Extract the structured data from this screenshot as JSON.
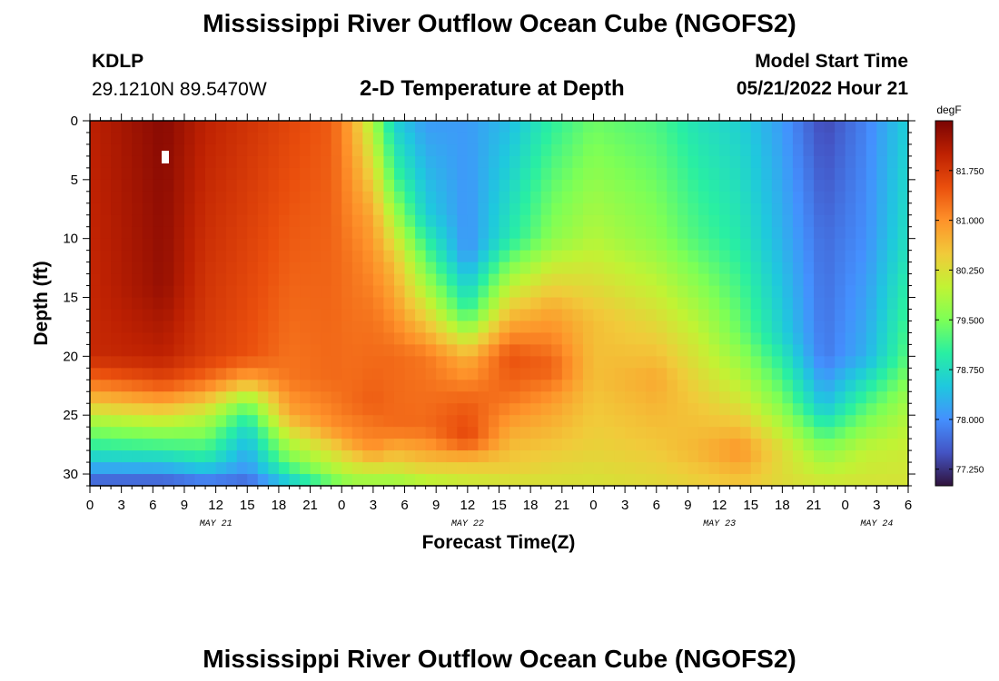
{
  "header": {
    "title": "Mississippi River Outflow Ocean Cube (NGOFS2)",
    "station_id": "KDLP",
    "coords": "29.1210N  89.5470W",
    "subtitle": "2-D Temperature at Depth",
    "model_label": "Model Start Time",
    "model_time": "05/21/2022 Hour 21"
  },
  "footer": {
    "title": "Mississippi River Outflow Ocean Cube (NGOFS2)"
  },
  "chart_data": {
    "type": "heatmap",
    "title": "2-D Temperature at Depth",
    "xlabel": "Forecast Time(Z)",
    "ylabel": "Depth (ft)",
    "x_hours_range": [
      0,
      78
    ],
    "ylim": [
      0,
      31
    ],
    "x_tick_labels": [
      "0",
      "3",
      "6",
      "9",
      "12",
      "15",
      "18",
      "21",
      "0",
      "3",
      "6",
      "9",
      "12",
      "15",
      "18",
      "21",
      "0",
      "3",
      "6",
      "9",
      "12",
      "15",
      "18",
      "21",
      "0",
      "3",
      "6"
    ],
    "y_tick_labels": [
      "0",
      "5",
      "10",
      "15",
      "20",
      "25",
      "30"
    ],
    "y_tick_values": [
      0,
      5,
      10,
      15,
      20,
      25,
      30
    ],
    "date_labels": [
      {
        "label": "MAY 21",
        "hour": 12
      },
      {
        "label": "MAY 22",
        "hour": 36
      },
      {
        "label": "MAY 23",
        "hour": 60
      },
      {
        "label": "MAY 24",
        "hour": 75
      }
    ],
    "colorbar": {
      "unit": "degF",
      "min": 77.0,
      "max": 82.5,
      "tick_labels": [
        "81.750",
        "81.000",
        "80.250",
        "79.500",
        "78.750",
        "78.000",
        "77.250"
      ],
      "tick_values": [
        81.75,
        81.0,
        80.25,
        79.5,
        78.75,
        78.0,
        77.25
      ],
      "colors": [
        "#30123b",
        "#4454c4",
        "#4490fe",
        "#1fc8de",
        "#29efa2",
        "#7dff56",
        "#c1f334",
        "#f1ca3a",
        "#fe922a",
        "#ea4f0d",
        "#be2102",
        "#7a0403"
      ]
    },
    "heatmap_profiles": [
      {
        "hour": 0,
        "temps": [
          {
            "d": 0,
            "t": 82.0
          },
          {
            "d": 20,
            "t": 81.9
          },
          {
            "d": 22,
            "t": 81.3
          },
          {
            "d": 24,
            "t": 80.5
          },
          {
            "d": 26,
            "t": 79.6
          },
          {
            "d": 28,
            "t": 78.9
          },
          {
            "d": 30,
            "t": 78.0
          },
          {
            "d": 31,
            "t": 77.4
          }
        ]
      },
      {
        "hour": 7,
        "temps": [
          {
            "d": 0,
            "t": 82.4
          },
          {
            "d": 14,
            "t": 82.3
          },
          {
            "d": 20,
            "t": 82.0
          },
          {
            "d": 22,
            "t": 81.6
          },
          {
            "d": 24,
            "t": 80.8
          },
          {
            "d": 26,
            "t": 79.8
          },
          {
            "d": 28,
            "t": 79.0
          },
          {
            "d": 30,
            "t": 78.0
          },
          {
            "d": 31,
            "t": 77.4
          }
        ]
      },
      {
        "hour": 11,
        "temps": [
          {
            "d": 0,
            "t": 82.0
          },
          {
            "d": 20,
            "t": 81.7
          },
          {
            "d": 22,
            "t": 81.3
          },
          {
            "d": 23,
            "t": 80.9
          },
          {
            "d": 25,
            "t": 80.0
          },
          {
            "d": 27,
            "t": 79.4
          },
          {
            "d": 29,
            "t": 78.8
          },
          {
            "d": 31,
            "t": 77.6
          }
        ]
      },
      {
        "hour": 15,
        "temps": [
          {
            "d": 0,
            "t": 81.8
          },
          {
            "d": 20,
            "t": 81.5
          },
          {
            "d": 22,
            "t": 80.8
          },
          {
            "d": 24,
            "t": 79.5
          },
          {
            "d": 26,
            "t": 78.7
          },
          {
            "d": 28,
            "t": 78.3
          },
          {
            "d": 30,
            "t": 78.0
          },
          {
            "d": 31,
            "t": 77.5
          }
        ]
      },
      {
        "hour": 19,
        "temps": [
          {
            "d": 0,
            "t": 81.6
          },
          {
            "d": 22,
            "t": 81.2
          },
          {
            "d": 25,
            "t": 80.8
          },
          {
            "d": 27,
            "t": 80.0
          },
          {
            "d": 29,
            "t": 79.4
          },
          {
            "d": 31,
            "t": 78.4
          }
        ]
      },
      {
        "hour": 23,
        "temps": [
          {
            "d": 0,
            "t": 81.4
          },
          {
            "d": 22,
            "t": 81.3
          },
          {
            "d": 26,
            "t": 81.0
          },
          {
            "d": 28,
            "t": 80.3
          },
          {
            "d": 30,
            "t": 79.7
          },
          {
            "d": 31,
            "t": 79.2
          }
        ]
      },
      {
        "hour": 25,
        "temps": [
          {
            "d": 0,
            "t": 80.8
          },
          {
            "d": 12,
            "t": 81.2
          },
          {
            "d": 24,
            "t": 81.3
          },
          {
            "d": 27,
            "t": 81.0
          },
          {
            "d": 29,
            "t": 80.3
          },
          {
            "d": 31,
            "t": 79.6
          }
        ]
      },
      {
        "hour": 27,
        "temps": [
          {
            "d": 0,
            "t": 79.8
          },
          {
            "d": 8,
            "t": 80.8
          },
          {
            "d": 16,
            "t": 81.2
          },
          {
            "d": 24,
            "t": 81.4
          },
          {
            "d": 28,
            "t": 81.0
          },
          {
            "d": 30,
            "t": 80.0
          },
          {
            "d": 31,
            "t": 79.6
          }
        ]
      },
      {
        "hour": 29,
        "temps": [
          {
            "d": 0,
            "t": 78.6
          },
          {
            "d": 5,
            "t": 79.2
          },
          {
            "d": 12,
            "t": 80.6
          },
          {
            "d": 20,
            "t": 81.3
          },
          {
            "d": 26,
            "t": 81.3
          },
          {
            "d": 29,
            "t": 80.4
          },
          {
            "d": 31,
            "t": 79.6
          }
        ]
      },
      {
        "hour": 32,
        "temps": [
          {
            "d": 0,
            "t": 78.1
          },
          {
            "d": 8,
            "t": 78.6
          },
          {
            "d": 14,
            "t": 79.8
          },
          {
            "d": 20,
            "t": 81.2
          },
          {
            "d": 26,
            "t": 81.3
          },
          {
            "d": 29,
            "t": 80.6
          },
          {
            "d": 31,
            "t": 79.8
          }
        ]
      },
      {
        "hour": 36,
        "temps": [
          {
            "d": 0,
            "t": 78.1
          },
          {
            "d": 11,
            "t": 78.0
          },
          {
            "d": 16,
            "t": 79.0
          },
          {
            "d": 20,
            "t": 80.7
          },
          {
            "d": 24,
            "t": 81.4
          },
          {
            "d": 27,
            "t": 81.6
          },
          {
            "d": 29,
            "t": 80.6
          },
          {
            "d": 31,
            "t": 80.0
          }
        ]
      },
      {
        "hour": 40,
        "temps": [
          {
            "d": 0,
            "t": 78.4
          },
          {
            "d": 10,
            "t": 78.9
          },
          {
            "d": 16,
            "t": 80.5
          },
          {
            "d": 20,
            "t": 81.5
          },
          {
            "d": 23,
            "t": 81.3
          },
          {
            "d": 27,
            "t": 80.7
          },
          {
            "d": 30,
            "t": 80.4
          },
          {
            "d": 31,
            "t": 80.1
          }
        ]
      },
      {
        "hour": 44,
        "temps": [
          {
            "d": 0,
            "t": 79.0
          },
          {
            "d": 10,
            "t": 79.6
          },
          {
            "d": 16,
            "t": 80.8
          },
          {
            "d": 21,
            "t": 81.4
          },
          {
            "d": 24,
            "t": 80.9
          },
          {
            "d": 28,
            "t": 80.5
          },
          {
            "d": 31,
            "t": 80.2
          }
        ]
      },
      {
        "hour": 48,
        "temps": [
          {
            "d": 0,
            "t": 79.4
          },
          {
            "d": 10,
            "t": 79.9
          },
          {
            "d": 17,
            "t": 80.6
          },
          {
            "d": 22,
            "t": 80.6
          },
          {
            "d": 28,
            "t": 80.4
          },
          {
            "d": 31,
            "t": 80.2
          }
        ]
      },
      {
        "hour": 54,
        "temps": [
          {
            "d": 0,
            "t": 79.2
          },
          {
            "d": 10,
            "t": 79.6
          },
          {
            "d": 18,
            "t": 80.4
          },
          {
            "d": 22,
            "t": 80.8
          },
          {
            "d": 28,
            "t": 80.5
          },
          {
            "d": 31,
            "t": 80.3
          }
        ]
      },
      {
        "hour": 58,
        "temps": [
          {
            "d": 0,
            "t": 78.8
          },
          {
            "d": 10,
            "t": 79.2
          },
          {
            "d": 18,
            "t": 80.0
          },
          {
            "d": 24,
            "t": 80.5
          },
          {
            "d": 28,
            "t": 80.7
          },
          {
            "d": 31,
            "t": 80.4
          }
        ]
      },
      {
        "hour": 62,
        "temps": [
          {
            "d": 0,
            "t": 78.6
          },
          {
            "d": 10,
            "t": 78.9
          },
          {
            "d": 18,
            "t": 79.4
          },
          {
            "d": 24,
            "t": 80.2
          },
          {
            "d": 28,
            "t": 81.0
          },
          {
            "d": 31,
            "t": 80.5
          }
        ]
      },
      {
        "hour": 66,
        "temps": [
          {
            "d": 0,
            "t": 78.1
          },
          {
            "d": 10,
            "t": 78.3
          },
          {
            "d": 18,
            "t": 78.6
          },
          {
            "d": 24,
            "t": 79.5
          },
          {
            "d": 28,
            "t": 80.3
          },
          {
            "d": 31,
            "t": 80.3
          }
        ]
      },
      {
        "hour": 70,
        "temps": [
          {
            "d": 0,
            "t": 77.4
          },
          {
            "d": 10,
            "t": 77.7
          },
          {
            "d": 20,
            "t": 77.8
          },
          {
            "d": 24,
            "t": 78.4
          },
          {
            "d": 28,
            "t": 79.6
          },
          {
            "d": 31,
            "t": 80.2
          }
        ]
      },
      {
        "hour": 74,
        "temps": [
          {
            "d": 0,
            "t": 77.9
          },
          {
            "d": 10,
            "t": 78.0
          },
          {
            "d": 20,
            "t": 78.3
          },
          {
            "d": 24,
            "t": 79.2
          },
          {
            "d": 28,
            "t": 80.0
          },
          {
            "d": 31,
            "t": 80.2
          }
        ]
      },
      {
        "hour": 78,
        "temps": [
          {
            "d": 0,
            "t": 78.6
          },
          {
            "d": 10,
            "t": 78.8
          },
          {
            "d": 20,
            "t": 79.3
          },
          {
            "d": 24,
            "t": 79.8
          },
          {
            "d": 28,
            "t": 80.1
          },
          {
            "d": 31,
            "t": 80.2
          }
        ]
      }
    ]
  }
}
